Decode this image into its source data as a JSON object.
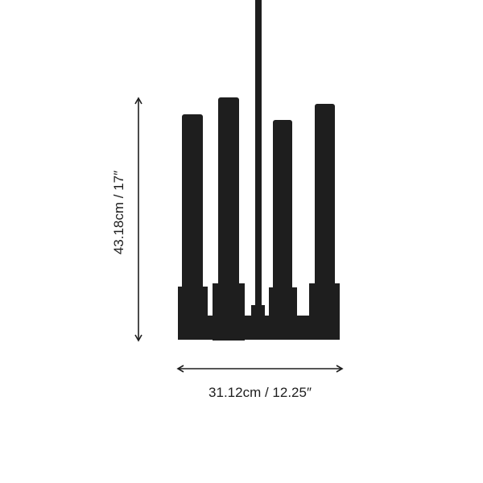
{
  "dimensions": {
    "height_label": "43.18cm / 17″",
    "width_label": "31.12cm / 12.25″"
  },
  "colors": {
    "fixture": "#1e1e1e",
    "arrow": "#1e1e1e",
    "background": "#ffffff"
  }
}
